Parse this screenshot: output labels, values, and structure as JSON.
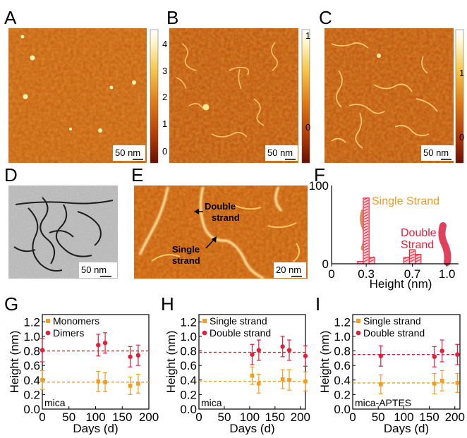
{
  "panels": {
    "A": "A",
    "B": "B",
    "C": "C",
    "D": "D",
    "E": "E",
    "F": "F",
    "G": "G",
    "H": "H",
    "I": "I"
  },
  "afm": {
    "A": {
      "scale": "50 nm",
      "colorbar_ticks": [
        "4",
        "3",
        "2",
        "1",
        "0"
      ]
    },
    "B": {
      "scale": "50 nm",
      "colorbar_ticks": [
        "1",
        "0"
      ]
    },
    "C": {
      "scale": "50 nm",
      "colorbar_ticks": [
        "1",
        "0"
      ]
    },
    "D": {
      "scale": "50 nm"
    },
    "E": {
      "scale": "20 nm",
      "annotations": [
        "Double",
        "strand",
        "Single",
        "strand"
      ]
    }
  },
  "colors": {
    "afm_dark": "#7a1a00",
    "afm_mid": "#c85a10",
    "afm_bright": "#fff0a0",
    "orange": "#f39c1f",
    "red": "#e0203a",
    "hist": "#e8283c"
  },
  "chart_data": [
    {
      "panel": "F",
      "type": "bar",
      "xlabel": "Height (nm)",
      "xticks": [
        "0",
        "0.3",
        "0.7",
        "1.0"
      ],
      "yticks": [
        "100",
        "0"
      ],
      "xlim": [
        0,
        1.1
      ],
      "ylim": [
        0,
        100
      ],
      "bins": [
        {
          "x": 0.25,
          "value": 3
        },
        {
          "x": 0.3,
          "value": 84
        },
        {
          "x": 0.35,
          "value": 8
        },
        {
          "x": 0.65,
          "value": 8
        },
        {
          "x": 0.7,
          "value": 18
        },
        {
          "x": 0.75,
          "value": 12
        }
      ],
      "labels": {
        "single": "Single Strand",
        "double_1": "Double",
        "double_2": "Strand"
      }
    },
    {
      "panel": "G",
      "type": "scatter",
      "xlabel": "Days (d)",
      "ylabel": "Height (nm)",
      "xlim": [
        0,
        200
      ],
      "ylim": [
        0,
        1.3
      ],
      "xticks": [
        "0",
        "50",
        "100",
        "150",
        "200"
      ],
      "yticks": [
        "0.0",
        "0.2",
        "0.4",
        "0.6",
        "0.8",
        "1.0",
        "1.2"
      ],
      "substrate": "mica",
      "series": [
        {
          "name": "Monomers",
          "color": "#f39c1f",
          "mean": 0.37,
          "points": [
            [
              0,
              0.4,
              0.13
            ],
            [
              105,
              0.38,
              0.14
            ],
            [
              118,
              0.37,
              0.13
            ],
            [
              165,
              0.32,
              0.12
            ],
            [
              180,
              0.35,
              0.13
            ]
          ]
        },
        {
          "name": "Dimers",
          "color": "#e0203a",
          "mean": 0.8,
          "points": [
            [
              0,
              0.81,
              0.16
            ],
            [
              105,
              0.88,
              0.15
            ],
            [
              118,
              0.91,
              0.14
            ],
            [
              165,
              0.72,
              0.14
            ],
            [
              180,
              0.74,
              0.14
            ]
          ]
        }
      ]
    },
    {
      "panel": "H",
      "type": "scatter",
      "xlabel": "Days (d)",
      "ylabel": "Height (nm)",
      "xlim": [
        0,
        210
      ],
      "ylim": [
        0,
        1.3
      ],
      "xticks": [
        "0",
        "50",
        "100",
        "150",
        "200"
      ],
      "yticks": [
        "0.0",
        "0.2",
        "0.4",
        "0.6",
        "0.8",
        "1.0",
        "1.2"
      ],
      "substrate": "mica",
      "series": [
        {
          "name": "Single strand",
          "color": "#f39c1f",
          "mean": 0.38,
          "points": [
            [
              105,
              0.46,
              0.12
            ],
            [
              118,
              0.35,
              0.13
            ],
            [
              165,
              0.41,
              0.13
            ],
            [
              178,
              0.4,
              0.14
            ],
            [
              210,
              0.38,
              0.13
            ]
          ]
        },
        {
          "name": "Double strand",
          "color": "#e0203a",
          "mean": 0.78,
          "points": [
            [
              105,
              0.75,
              0.14
            ],
            [
              118,
              0.81,
              0.14
            ],
            [
              165,
              0.86,
              0.14
            ],
            [
              178,
              0.81,
              0.14
            ],
            [
              210,
              0.73,
              0.14
            ]
          ]
        }
      ]
    },
    {
      "panel": "I",
      "type": "scatter",
      "xlabel": "Days (d)",
      "ylabel": "Height (nm)",
      "xlim": [
        0,
        210
      ],
      "ylim": [
        0,
        1.3
      ],
      "xticks": [
        "0",
        "50",
        "100",
        "150",
        "200"
      ],
      "yticks": [
        "0.0",
        "0.2",
        "0.4",
        "0.6",
        "0.8",
        "1.0",
        "1.2"
      ],
      "substrate": "mica-APTES",
      "series": [
        {
          "name": "Single strand",
          "color": "#f39c1f",
          "mean": 0.36,
          "points": [
            [
              55,
              0.34,
              0.13
            ],
            [
              160,
              0.35,
              0.14
            ],
            [
              175,
              0.39,
              0.14
            ],
            [
              205,
              0.36,
              0.13
            ]
          ]
        },
        {
          "name": "Double strand",
          "color": "#e0203a",
          "mean": 0.75,
          "points": [
            [
              55,
              0.73,
              0.14
            ],
            [
              160,
              0.72,
              0.14
            ],
            [
              175,
              0.8,
              0.15
            ],
            [
              205,
              0.75,
              0.14
            ]
          ]
        }
      ]
    }
  ]
}
